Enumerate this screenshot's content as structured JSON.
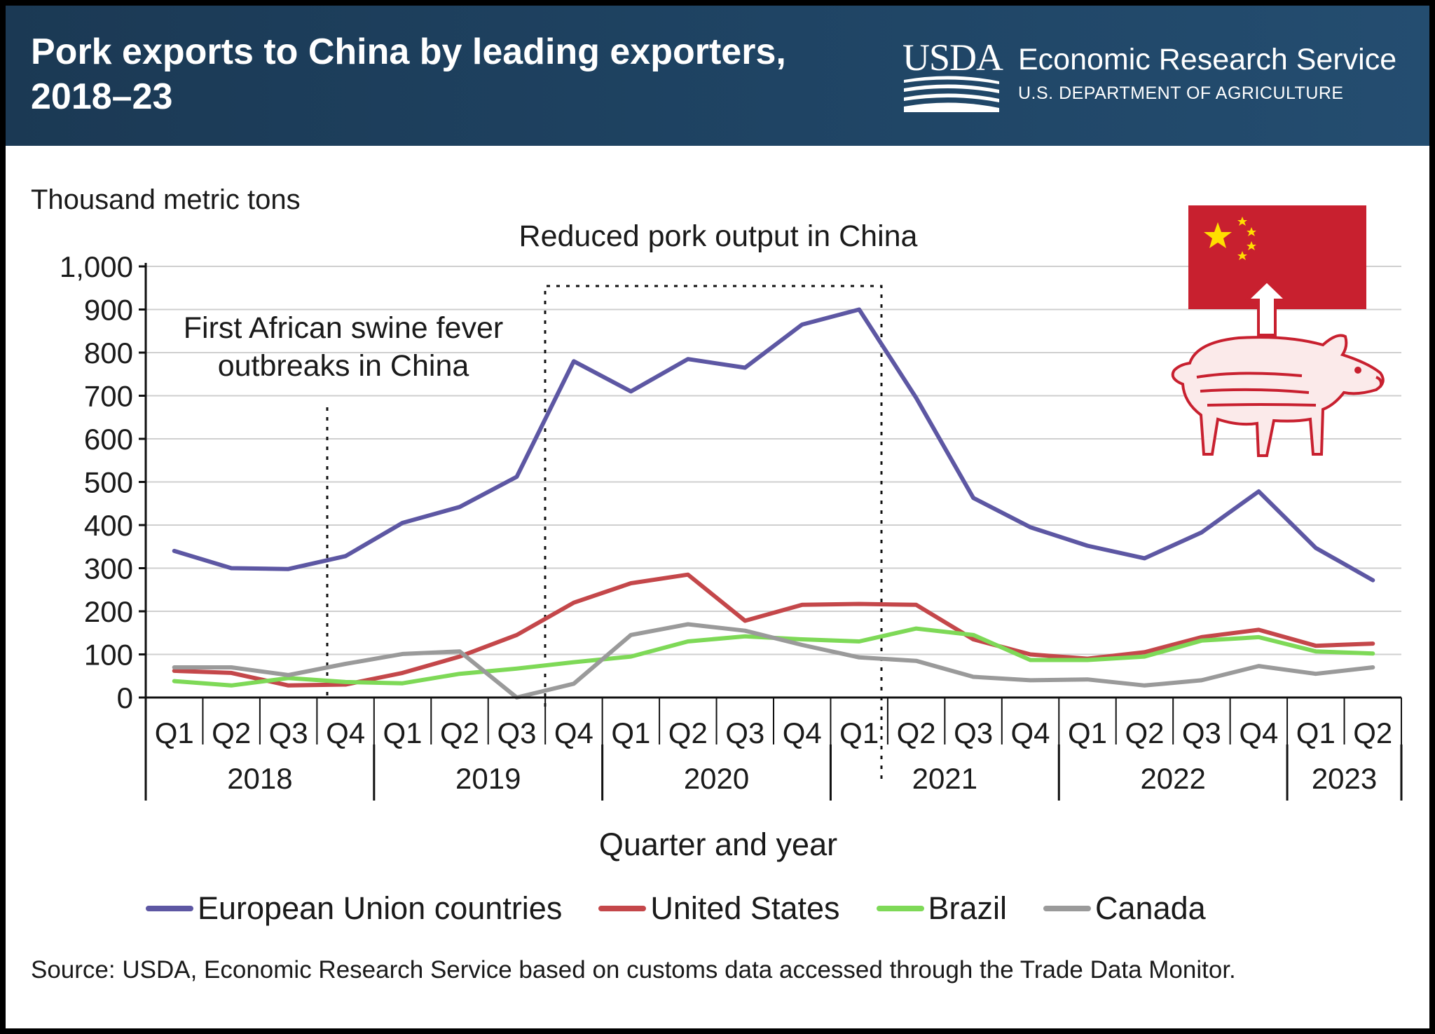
{
  "header": {
    "title_line1": "Pork exports to China by leading exporters,",
    "title_line2": "2018–23",
    "logo_text": "USDA",
    "agency": "Economic Research Service",
    "department": "U.S. DEPARTMENT OF AGRICULTURE"
  },
  "colors": {
    "header_bg": "#1f4464",
    "eu": "#5d57a3",
    "us": "#c4474a",
    "brazil": "#7ed957",
    "canada": "#9a9a9a",
    "flag_red": "#c8202f",
    "flag_star": "#ffde00",
    "pig": "#c8202f"
  },
  "icons": [
    "usda-logo-icon",
    "china-flag-icon",
    "export-arrow-icon",
    "pig-icon"
  ],
  "chart_data": {
    "type": "line",
    "unit_label": "Thousand metric tons",
    "xlabel": "Quarter and year",
    "ylim": [
      0,
      1000
    ],
    "y_ticks": [
      "0",
      "100",
      "200",
      "300",
      "400",
      "500",
      "600",
      "700",
      "800",
      "900",
      "1,000"
    ],
    "quarters": [
      "Q1",
      "Q2",
      "Q3",
      "Q4",
      "Q1",
      "Q2",
      "Q3",
      "Q4",
      "Q1",
      "Q2",
      "Q3",
      "Q4",
      "Q1",
      "Q2",
      "Q3",
      "Q4",
      "Q1",
      "Q2",
      "Q3",
      "Q4",
      "Q1",
      "Q2"
    ],
    "years": [
      {
        "label": "2018",
        "count": 4
      },
      {
        "label": "2019",
        "count": 4
      },
      {
        "label": "2020",
        "count": 4
      },
      {
        "label": "2021",
        "count": 4
      },
      {
        "label": "2022",
        "count": 4
      },
      {
        "label": "2023",
        "count": 2
      }
    ],
    "series": [
      {
        "name": "European Union countries",
        "color": "#5d57a3",
        "values": [
          340,
          300,
          298,
          328,
          405,
          442,
          512,
          780,
          710,
          785,
          765,
          865,
          900,
          695,
          463,
          395,
          352,
          323,
          383,
          478,
          347,
          272
        ]
      },
      {
        "name": "United States",
        "color": "#c4474a",
        "values": [
          62,
          57,
          28,
          30,
          57,
          95,
          145,
          220,
          265,
          285,
          178,
          215,
          217,
          215,
          135,
          100,
          90,
          105,
          140,
          157,
          120,
          125
        ]
      },
      {
        "name": "Brazil",
        "color": "#7ed957",
        "values": [
          38,
          28,
          45,
          36,
          33,
          55,
          67,
          82,
          95,
          130,
          142,
          135,
          130,
          160,
          145,
          87,
          87,
          95,
          132,
          140,
          107,
          102
        ]
      },
      {
        "name": "Canada",
        "color": "#9a9a9a",
        "values": [
          70,
          70,
          52,
          78,
          101,
          107,
          0,
          32,
          145,
          170,
          155,
          122,
          93,
          85,
          48,
          40,
          42,
          28,
          40,
          73,
          55,
          70
        ]
      }
    ],
    "annotations": [
      {
        "text_line1": "First African swine fever",
        "text_line2": "outbreaks in China"
      },
      {
        "text": "Reduced pork output in China"
      }
    ],
    "grid": "horizontal",
    "legend_position": "bottom"
  },
  "source": "Source: USDA, Economic Research Service based on customs data accessed through the Trade Data Monitor."
}
